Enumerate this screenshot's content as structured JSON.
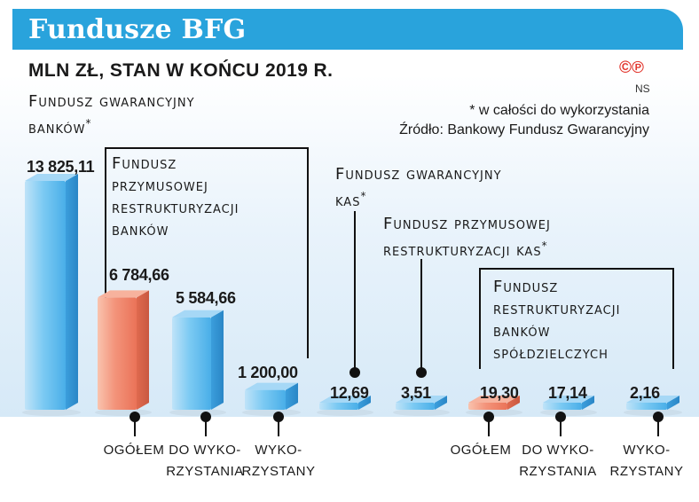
{
  "title": "Fundusze BFG",
  "subtitle": "MLN ZŁ, STAN W KOŃCU 2019 R.",
  "logo": {
    "mark": "©℗",
    "initials": "NS"
  },
  "notes": {
    "footnote": "* w całości do wykorzystania",
    "source": "Źródło: Bankowy Fundusz Gwarancyjny"
  },
  "groups": {
    "fgb": {
      "line1": "Fundusz gwarancyjny",
      "line2": "banków",
      "star": "*"
    },
    "fprb": {
      "line1": "Fundusz",
      "line2": "przymusowej",
      "line3": "restrukturyzacji",
      "line4": "banków"
    },
    "fgk": {
      "line1": "Fundusz gwarancyjny",
      "line2": "kas",
      "star": "*"
    },
    "fprk": {
      "line1": "Fundusz przymusowej",
      "line2": "restrukturyzacji kas",
      "star": "*"
    },
    "frbs": {
      "line1": "Fundusz",
      "line2": "restrukturyzacji",
      "line3": "banków",
      "line4": "spółdzielczych"
    }
  },
  "categories": {
    "ogolem": "OGÓŁEM",
    "do1": "DO WYKO-",
    "do2": "RZYSTANIA",
    "wyk1": "WYKO-",
    "wyk2": "RZYSTANY"
  },
  "colors": {
    "blue": "#5bb8ee",
    "orange": "#f08466",
    "accent": "#29a3dc"
  },
  "chart_data": {
    "type": "bar",
    "title": "Fundusze BFG",
    "subtitle": "MLN ZŁ, STAN W KOŃCU 2019 R.",
    "bars": [
      {
        "group": "Fundusz gwarancyjny banków*",
        "category": "",
        "value": 13825.11,
        "label": "13 825,11",
        "color": "blue"
      },
      {
        "group": "Fundusz przymusowej restrukturyzacji banków",
        "category": "OGÓŁEM",
        "value": 6784.66,
        "label": "6 784,66",
        "color": "orange"
      },
      {
        "group": "Fundusz przymusowej restrukturyzacji banków",
        "category": "DO WYKORZYSTANIA",
        "value": 5584.66,
        "label": "5 584,66",
        "color": "blue"
      },
      {
        "group": "Fundusz przymusowej restrukturyzacji banków",
        "category": "WYKORZYSTANY",
        "value": 1200.0,
        "label": "1 200,00",
        "color": "blue"
      },
      {
        "group": "Fundusz gwarancyjny kas*",
        "category": "",
        "value": 12.69,
        "label": "12,69",
        "color": "blue"
      },
      {
        "group": "Fundusz przymusowej restrukturyzacji kas*",
        "category": "",
        "value": 3.51,
        "label": "3,51",
        "color": "blue"
      },
      {
        "group": "Fundusz restrukturyzacji banków spółdzielczych",
        "category": "OGÓŁEM",
        "value": 19.3,
        "label": "19,30",
        "color": "orange"
      },
      {
        "group": "Fundusz restrukturyzacji banków spółdzielczych",
        "category": "DO WYKORZYSTANIA",
        "value": 17.14,
        "label": "17,14",
        "color": "blue"
      },
      {
        "group": "Fundusz restrukturyzacji banków spółdzielczych",
        "category": "WYKORZYSTANY",
        "value": 2.16,
        "label": "2,16",
        "color": "blue"
      }
    ]
  }
}
